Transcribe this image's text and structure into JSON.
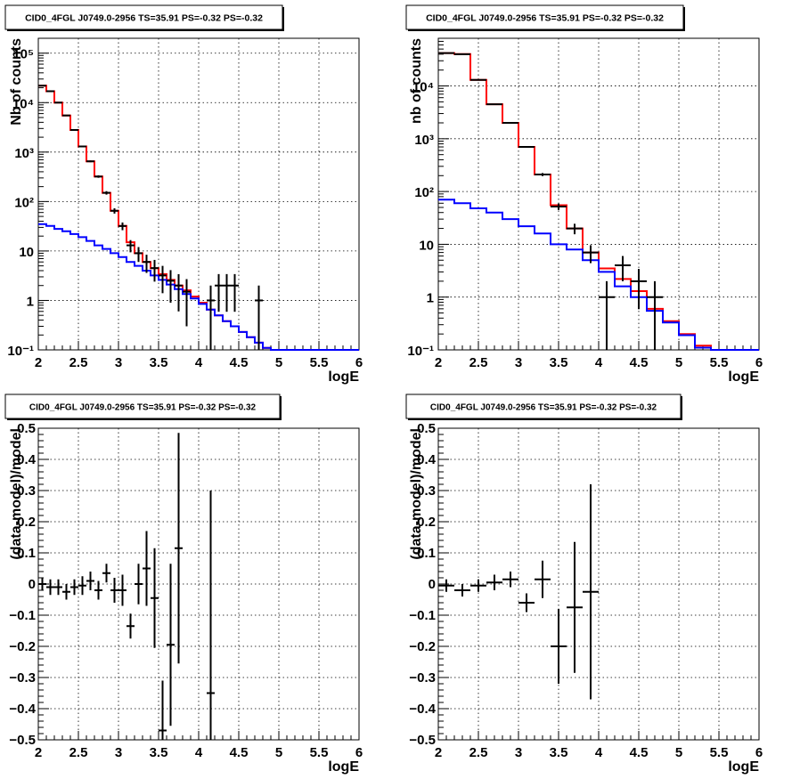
{
  "chart_data": [
    {
      "type": "line",
      "title": "CID0_4FGL J0749.0-2956 TS=35.91 PS=-0.32 PS=-0.32",
      "xlabel": "logE",
      "ylabel": "Nb of counts",
      "ylog": true,
      "xlim": [
        2,
        6
      ],
      "ylim": [
        0.1,
        200000
      ],
      "xticks": [
        "2",
        "2.5",
        "3",
        "3.5",
        "4",
        "4.5",
        "5",
        "5.5",
        "6"
      ],
      "yticks": [
        "10⁻¹",
        "1",
        "10",
        "10²",
        "10³",
        "10⁴",
        "10⁵"
      ],
      "grid": true,
      "binwidth": 0.1,
      "series": [
        {
          "color": "#ff0000",
          "style": "step",
          "x": [
            2.05,
            2.15,
            2.25,
            2.35,
            2.45,
            2.55,
            2.65,
            2.75,
            2.85,
            2.95,
            3.05,
            3.15,
            3.25,
            3.35,
            3.45,
            3.55,
            3.65,
            3.75,
            3.85,
            3.95,
            4.05,
            4.15,
            4.25,
            4.35,
            4.45,
            4.55,
            4.65,
            4.75,
            4.85,
            4.95,
            5.05,
            5.15,
            5.25,
            5.35,
            5.45,
            5.55,
            5.65,
            5.75,
            5.85,
            5.95
          ],
          "values": [
            22000,
            17000,
            10000,
            5500,
            2800,
            1300,
            650,
            320,
            150,
            65,
            32,
            15,
            9,
            6,
            4.5,
            3.4,
            2.6,
            2.0,
            1.6,
            1.2,
            0.9,
            0.65,
            0.5,
            0.38,
            0.3,
            0.23,
            0.18,
            0.14,
            0.11,
            0.1,
            0.1,
            0.1,
            0.1,
            0.1,
            0.1,
            0.1,
            0.1,
            0.1,
            0.1,
            0.1
          ]
        },
        {
          "color": "#0000ff",
          "style": "step",
          "x": [
            2.05,
            2.15,
            2.25,
            2.35,
            2.45,
            2.55,
            2.65,
            2.75,
            2.85,
            2.95,
            3.05,
            3.15,
            3.25,
            3.35,
            3.45,
            3.55,
            3.65,
            3.75,
            3.85,
            3.95,
            4.05,
            4.15,
            4.25,
            4.35,
            4.45,
            4.55,
            4.65,
            4.75,
            4.85,
            4.95,
            5.05,
            5.15,
            5.25,
            5.35,
            5.45,
            5.55,
            5.65,
            5.75,
            5.85,
            5.95
          ],
          "values": [
            35,
            32,
            28,
            25,
            22,
            19,
            16,
            13,
            11,
            9,
            7.5,
            6,
            5,
            4,
            3.2,
            2.6,
            2.1,
            1.7,
            1.35,
            1.1,
            0.85,
            0.65,
            0.5,
            0.38,
            0.3,
            0.23,
            0.18,
            0.14,
            0.11,
            0.1,
            0.1,
            0.1,
            0.1,
            0.1,
            0.1,
            0.1,
            0.1,
            0.1,
            0.1,
            0.1
          ]
        },
        {
          "color": "#000000",
          "style": "errorbar",
          "x": [
            2.05,
            2.15,
            2.25,
            2.35,
            2.45,
            2.55,
            2.65,
            2.75,
            2.85,
            2.95,
            3.05,
            3.15,
            3.25,
            3.35,
            3.45,
            3.55,
            3.65,
            3.75,
            3.85,
            4.15,
            4.25,
            4.35,
            4.45,
            4.75
          ],
          "values": [
            22000,
            17000,
            10000,
            5500,
            2800,
            1300,
            650,
            320,
            150,
            65,
            32,
            13,
            9,
            6,
            4.5,
            3.2,
            2.5,
            2.0,
            1.5,
            1,
            2,
            2,
            2,
            1
          ],
          "yerr_lo": [
            150,
            130,
            100,
            74,
            53,
            36,
            25,
            18,
            12,
            8,
            5.7,
            3.6,
            3,
            2.4,
            2.1,
            1.8,
            1.6,
            1.4,
            1.2,
            1,
            1.41,
            1.41,
            1.41,
            1
          ],
          "yerr_hi": [
            150,
            130,
            100,
            74,
            53,
            36,
            25,
            18,
            12,
            8,
            5.7,
            3.6,
            3,
            2.4,
            2.1,
            1.8,
            1.6,
            1.4,
            1.2,
            1,
            1.41,
            1.41,
            1.41,
            1
          ]
        }
      ]
    },
    {
      "type": "line",
      "title": "CID0_4FGL J0749.0-2956 TS=35.91 PS=-0.32 PS=-0.32",
      "xlabel": "logE",
      "ylabel": "nb of counts",
      "ylog": true,
      "xlim": [
        2,
        6
      ],
      "ylim": [
        0.1,
        80000
      ],
      "xticks": [
        "2",
        "2.5",
        "3",
        "3.5",
        "4",
        "4.5",
        "5",
        "5.5",
        "6"
      ],
      "yticks": [
        "10⁻¹",
        "1",
        "10",
        "10²",
        "10³",
        "10⁴"
      ],
      "grid": true,
      "binwidth": 0.2,
      "series": [
        {
          "color": "#ff0000",
          "style": "step",
          "x": [
            2.1,
            2.3,
            2.5,
            2.7,
            2.9,
            3.1,
            3.3,
            3.5,
            3.7,
            3.9,
            4.1,
            4.3,
            4.5,
            4.7,
            4.9,
            5.1,
            5.3,
            5.5,
            5.7,
            5.9
          ],
          "values": [
            42000,
            40000,
            13000,
            4500,
            2000,
            700,
            210,
            55,
            20,
            7,
            3.5,
            2.2,
            1.3,
            0.6,
            0.35,
            0.2,
            0.12,
            0.1,
            0.1,
            0.1
          ]
        },
        {
          "color": "#0000ff",
          "style": "step",
          "x": [
            2.1,
            2.3,
            2.5,
            2.7,
            2.9,
            3.1,
            3.3,
            3.5,
            3.7,
            3.9,
            4.1,
            4.3,
            4.5,
            4.7,
            4.9,
            5.1,
            5.3,
            5.5,
            5.7,
            5.9
          ],
          "values": [
            70,
            60,
            48,
            40,
            30,
            22,
            16,
            10,
            8,
            5,
            3,
            1.6,
            1,
            0.55,
            0.33,
            0.19,
            0.11,
            0.1,
            0.1,
            0.1
          ]
        },
        {
          "color": "#000000",
          "style": "errorbar",
          "x": [
            2.1,
            2.3,
            2.5,
            2.7,
            2.9,
            3.1,
            3.3,
            3.5,
            3.7,
            3.9,
            4.1,
            4.3,
            4.5,
            4.7
          ],
          "values": [
            42000,
            40000,
            13000,
            4500,
            2000,
            700,
            210,
            52,
            20,
            7,
            1,
            4,
            2,
            1
          ],
          "yerr_lo": [
            205,
            200,
            114,
            67,
            45,
            26,
            14,
            7.2,
            4.5,
            2.6,
            1,
            2,
            1.41,
            1
          ],
          "yerr_hi": [
            205,
            200,
            114,
            67,
            45,
            26,
            14,
            7.2,
            4.5,
            2.6,
            1,
            2,
            1.41,
            1
          ]
        }
      ]
    },
    {
      "type": "scatter",
      "title": "CID0_4FGL J0749.0-2956 TS=35.91 PS=-0.32 PS=-0.32",
      "xlabel": "logE",
      "ylabel": "(data-model)/model",
      "ylog": false,
      "xlim": [
        2,
        6
      ],
      "ylim": [
        -0.5,
        0.5
      ],
      "xticks": [
        "2",
        "2.5",
        "3",
        "3.5",
        "4",
        "4.5",
        "5",
        "5.5",
        "6"
      ],
      "yticks": [
        "−0.5",
        "−0.4",
        "−0.3",
        "−0.2",
        "−0.1",
        "0",
        "0.1",
        "0.2",
        "0.3",
        "0.4",
        "0.5"
      ],
      "grid": true,
      "binwidth": 0.1,
      "series": [
        {
          "color": "#000000",
          "style": "errorbar",
          "x": [
            2.05,
            2.15,
            2.25,
            2.35,
            2.45,
            2.55,
            2.65,
            2.75,
            2.85,
            2.95,
            3.05,
            3.15,
            3.25,
            3.35,
            3.45,
            3.55,
            3.65,
            3.75,
            4.15
          ],
          "values": [
            0,
            -0.01,
            -0.01,
            -0.025,
            -0.01,
            -0.005,
            0.01,
            -0.02,
            0.035,
            -0.02,
            -0.02,
            -0.135,
            0,
            0.05,
            -0.045,
            -0.47,
            -0.195,
            0.115,
            -0.35
          ],
          "yerr_lo": [
            0.02,
            0.025,
            0.025,
            0.025,
            0.025,
            0.03,
            0.03,
            0.03,
            0.03,
            0.04,
            0.05,
            0.04,
            0.065,
            0.12,
            0.16,
            0.16,
            0.26,
            0.37,
            0.65
          ],
          "yerr_hi": [
            0.02,
            0.025,
            0.025,
            0.025,
            0.025,
            0.03,
            0.03,
            0.03,
            0.03,
            0.04,
            0.05,
            0.04,
            0.065,
            0.12,
            0.16,
            0.16,
            0.26,
            0.37,
            0.65
          ]
        }
      ]
    },
    {
      "type": "scatter",
      "title": "CID0_4FGL J0749.0-2956 TS=35.91 PS=-0.32 PS=-0.32",
      "xlabel": "logE",
      "ylabel": "(data-model)/model",
      "ylog": false,
      "xlim": [
        2,
        6
      ],
      "ylim": [
        -0.5,
        0.5
      ],
      "xticks": [
        "2",
        "2.5",
        "3",
        "3.5",
        "4",
        "4.5",
        "5",
        "5.5",
        "6"
      ],
      "yticks": [
        "−0.5",
        "−0.4",
        "−0.3",
        "−0.2",
        "−0.1",
        "0",
        "0.1",
        "0.2",
        "0.3",
        "0.4",
        "0.5"
      ],
      "grid": true,
      "binwidth": 0.2,
      "series": [
        {
          "color": "#000000",
          "style": "errorbar",
          "x": [
            2.1,
            2.3,
            2.5,
            2.7,
            2.9,
            3.1,
            3.3,
            3.5,
            3.7,
            3.9
          ],
          "values": [
            -0.005,
            -0.02,
            -0.005,
            0.005,
            0.015,
            -0.06,
            0.015,
            -0.2,
            -0.075,
            -0.025
          ],
          "yerr_lo": [
            0.02,
            0.02,
            0.02,
            0.025,
            0.025,
            0.03,
            0.06,
            0.12,
            0.21,
            0.345
          ],
          "yerr_hi": [
            0.02,
            0.02,
            0.02,
            0.025,
            0.025,
            0.03,
            0.06,
            0.12,
            0.21,
            0.345
          ]
        }
      ]
    }
  ]
}
